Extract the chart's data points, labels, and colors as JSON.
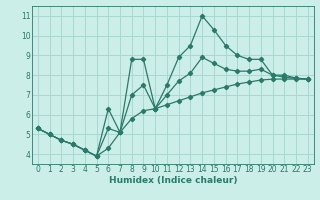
{
  "xlabel": "Humidex (Indice chaleur)",
  "bg_color": "#cceee8",
  "grid_color": "#a8d8d0",
  "line_color": "#2a7a6a",
  "x_data": [
    0,
    1,
    2,
    3,
    4,
    5,
    6,
    7,
    8,
    9,
    10,
    11,
    12,
    13,
    14,
    15,
    16,
    17,
    18,
    19,
    20,
    21,
    22,
    23
  ],
  "y_main": [
    5.3,
    5.0,
    4.7,
    4.5,
    4.2,
    3.9,
    6.3,
    5.1,
    8.8,
    8.8,
    6.3,
    7.5,
    8.9,
    9.5,
    11.0,
    10.3,
    9.5,
    9.0,
    8.8,
    8.8,
    8.0,
    8.0,
    7.85,
    7.8
  ],
  "y_low": [
    5.3,
    5.0,
    4.7,
    4.5,
    4.2,
    3.9,
    4.3,
    5.1,
    5.8,
    6.2,
    6.3,
    6.5,
    6.7,
    6.9,
    7.1,
    7.25,
    7.4,
    7.55,
    7.65,
    7.75,
    7.8,
    7.8,
    7.8,
    7.8
  ],
  "y_high": [
    5.3,
    5.0,
    4.7,
    4.5,
    4.2,
    3.9,
    5.3,
    5.1,
    7.0,
    7.5,
    6.3,
    7.0,
    7.7,
    8.1,
    8.9,
    8.6,
    8.3,
    8.2,
    8.2,
    8.3,
    8.0,
    7.9,
    7.83,
    7.8
  ],
  "xlim": [
    -0.5,
    23.5
  ],
  "ylim": [
    3.5,
    11.5
  ],
  "yticks": [
    4,
    5,
    6,
    7,
    8,
    9,
    10,
    11
  ],
  "xticks": [
    0,
    1,
    2,
    3,
    4,
    5,
    6,
    7,
    8,
    9,
    10,
    11,
    12,
    13,
    14,
    15,
    16,
    17,
    18,
    19,
    20,
    21,
    22,
    23
  ],
  "tick_fontsize": 5.5,
  "xlabel_fontsize": 6.5
}
